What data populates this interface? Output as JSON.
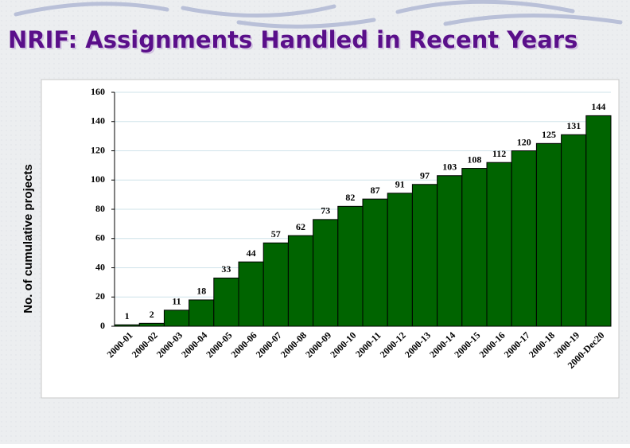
{
  "chart_data": {
    "type": "bar",
    "title": "NRIF: Assignments Handled in Recent Years",
    "y_label": "No. of cumulative projects",
    "categories": [
      "2000-01",
      "2000-02",
      "2000-03",
      "2000-04",
      "2000-05",
      "2000-06",
      "2000-07",
      "2000-08",
      "2000-09",
      "2000-10",
      "2000-11",
      "2000-12",
      "2000-13",
      "2000-14",
      "2000-15",
      "2000-16",
      "2000-17",
      "2000-18",
      "2000-19",
      "2000-Dec20"
    ],
    "values": [
      1,
      2,
      11,
      18,
      33,
      44,
      57,
      62,
      73,
      82,
      87,
      91,
      97,
      103,
      108,
      112,
      120,
      125,
      131,
      144
    ],
    "color": "#006400",
    "ylim": [
      0,
      160
    ],
    "yticks": [
      0,
      20,
      40,
      60,
      80,
      100,
      120,
      140,
      160
    ],
    "grid": true
  }
}
